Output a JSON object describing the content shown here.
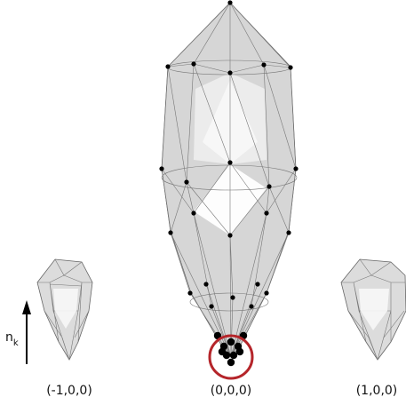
{
  "labels": [
    "(-1,0,0)",
    "(0,0,0)",
    "(1,0,0)"
  ],
  "axis_label": {
    "base": "n",
    "subscript": "k"
  }
}
